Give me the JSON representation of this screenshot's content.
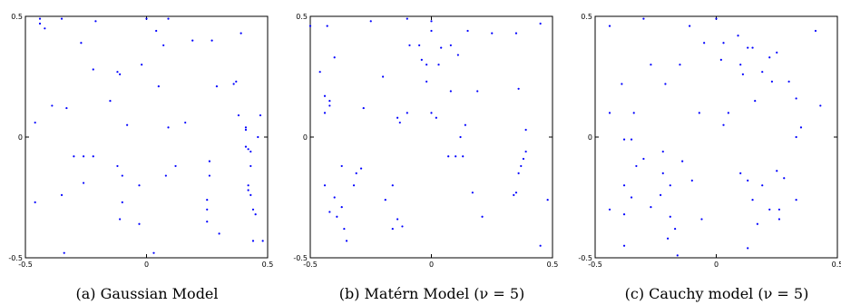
{
  "chart_data": [
    {
      "type": "scatter",
      "caption": "(a) Gaussian Model",
      "xlim": [
        -0.5,
        0.5
      ],
      "ylim": [
        -0.5,
        0.5
      ],
      "xticks": [
        "-0.5",
        "0",
        "0.5"
      ],
      "yticks": [
        "0.5",
        "0",
        "-0.5"
      ],
      "color": "#0000ff",
      "points": [
        [
          -0.44,
          0.49
        ],
        [
          -0.35,
          0.49
        ],
        [
          -0.21,
          0.48
        ],
        [
          0.0,
          0.49
        ],
        [
          0.09,
          0.49
        ],
        [
          0.04,
          0.44
        ],
        [
          -0.44,
          0.47
        ],
        [
          -0.27,
          0.39
        ],
        [
          0.07,
          0.38
        ],
        [
          0.19,
          0.4
        ],
        [
          0.27,
          0.4
        ],
        [
          0.39,
          0.43
        ],
        [
          -0.42,
          0.45
        ],
        [
          -0.22,
          0.28
        ],
        [
          -0.12,
          0.27
        ],
        [
          -0.02,
          0.3
        ],
        [
          -0.11,
          0.26
        ],
        [
          0.05,
          0.21
        ],
        [
          0.29,
          0.21
        ],
        [
          0.36,
          0.22
        ],
        [
          0.37,
          0.23
        ],
        [
          -0.15,
          0.15
        ],
        [
          -0.39,
          0.13
        ],
        [
          -0.33,
          0.12
        ],
        [
          0.38,
          0.09
        ],
        [
          0.47,
          0.09
        ],
        [
          -0.46,
          0.06
        ],
        [
          -0.08,
          0.05
        ],
        [
          0.16,
          0.06
        ],
        [
          0.09,
          0.04
        ],
        [
          0.41,
          0.04
        ],
        [
          0.41,
          0.03
        ],
        [
          0.46,
          0.0
        ],
        [
          0.41,
          -0.04
        ],
        [
          0.42,
          -0.05
        ],
        [
          0.43,
          -0.06
        ],
        [
          -0.3,
          -0.08
        ],
        [
          -0.26,
          -0.08
        ],
        [
          -0.22,
          -0.08
        ],
        [
          -0.12,
          -0.12
        ],
        [
          0.12,
          -0.12
        ],
        [
          0.08,
          -0.16
        ],
        [
          0.26,
          -0.16
        ],
        [
          0.26,
          -0.1
        ],
        [
          -0.1,
          -0.16
        ],
        [
          0.43,
          -0.12
        ],
        [
          -0.26,
          -0.19
        ],
        [
          -0.03,
          -0.2
        ],
        [
          0.42,
          -0.2
        ],
        [
          0.42,
          -0.22
        ],
        [
          -0.35,
          -0.24
        ],
        [
          -0.1,
          -0.27
        ],
        [
          0.25,
          -0.26
        ],
        [
          0.43,
          -0.24
        ],
        [
          -0.46,
          -0.27
        ],
        [
          0.25,
          -0.3
        ],
        [
          0.44,
          -0.3
        ],
        [
          -0.11,
          -0.34
        ],
        [
          -0.03,
          -0.36
        ],
        [
          0.25,
          -0.35
        ],
        [
          0.45,
          -0.32
        ],
        [
          0.3,
          -0.4
        ],
        [
          0.44,
          -0.43
        ],
        [
          0.48,
          -0.43
        ],
        [
          -0.34,
          -0.48
        ],
        [
          0.03,
          -0.48
        ]
      ]
    },
    {
      "type": "scatter",
      "caption": "(b) Matérn Model (ν = 5)",
      "xlim": [
        -0.5,
        0.5
      ],
      "ylim": [
        -0.5,
        0.5
      ],
      "xticks": [
        "-0.5",
        "0",
        "0.5"
      ],
      "yticks": [
        "0.5",
        "0",
        "-0.5"
      ],
      "color": "#0000ff",
      "points": [
        [
          -0.5,
          0.46
        ],
        [
          -0.25,
          0.48
        ],
        [
          -0.1,
          0.49
        ],
        [
          0.0,
          0.48
        ],
        [
          -0.43,
          0.46
        ],
        [
          0.0,
          0.44
        ],
        [
          0.25,
          0.43
        ],
        [
          0.35,
          0.43
        ],
        [
          0.45,
          0.47
        ],
        [
          0.15,
          0.44
        ],
        [
          -0.09,
          0.38
        ],
        [
          -0.05,
          0.38
        ],
        [
          0.04,
          0.37
        ],
        [
          0.08,
          0.38
        ],
        [
          0.11,
          0.34
        ],
        [
          -0.04,
          0.32
        ],
        [
          -0.02,
          0.3
        ],
        [
          -0.4,
          0.33
        ],
        [
          -0.46,
          0.27
        ],
        [
          -0.2,
          0.25
        ],
        [
          0.03,
          0.3
        ],
        [
          -0.02,
          0.23
        ],
        [
          -0.28,
          0.12
        ],
        [
          0.08,
          0.19
        ],
        [
          0.19,
          0.19
        ],
        [
          0.36,
          0.2
        ],
        [
          -0.44,
          0.17
        ],
        [
          -0.42,
          0.15
        ],
        [
          -0.42,
          0.13
        ],
        [
          -0.44,
          0.1
        ],
        [
          -0.1,
          0.1
        ],
        [
          -0.14,
          0.08
        ],
        [
          -0.13,
          0.06
        ],
        [
          0.0,
          0.1
        ],
        [
          0.02,
          0.08
        ],
        [
          0.14,
          0.05
        ],
        [
          0.12,
          0.0
        ],
        [
          0.39,
          0.03
        ],
        [
          0.39,
          -0.06
        ],
        [
          0.07,
          -0.08
        ],
        [
          0.1,
          -0.08
        ],
        [
          0.13,
          -0.08
        ],
        [
          0.38,
          -0.09
        ],
        [
          0.37,
          -0.12
        ],
        [
          0.36,
          -0.15
        ],
        [
          -0.37,
          -0.12
        ],
        [
          -0.31,
          -0.15
        ],
        [
          -0.29,
          -0.13
        ],
        [
          -0.44,
          -0.2
        ],
        [
          -0.4,
          -0.25
        ],
        [
          -0.32,
          -0.2
        ],
        [
          -0.16,
          -0.2
        ],
        [
          -0.19,
          -0.26
        ],
        [
          0.17,
          -0.23
        ],
        [
          0.34,
          -0.24
        ],
        [
          0.35,
          -0.23
        ],
        [
          0.48,
          -0.26
        ],
        [
          -0.39,
          -0.33
        ],
        [
          -0.42,
          -0.31
        ],
        [
          -0.37,
          -0.29
        ],
        [
          -0.14,
          -0.34
        ],
        [
          -0.12,
          -0.37
        ],
        [
          -0.16,
          -0.38
        ],
        [
          -0.36,
          -0.38
        ],
        [
          -0.35,
          -0.43
        ],
        [
          0.21,
          -0.33
        ],
        [
          0.45,
          -0.45
        ]
      ]
    },
    {
      "type": "scatter",
      "caption": "(c) Cauchy model (ν = 5)",
      "xlim": [
        -0.5,
        0.5
      ],
      "ylim": [
        -0.5,
        0.5
      ],
      "xticks": [
        "-0.5",
        "0",
        "0.5"
      ],
      "yticks": [
        "0.5",
        "0",
        "-0.5"
      ],
      "color": "#0000ff",
      "points": [
        [
          -0.3,
          0.49
        ],
        [
          0.0,
          0.49
        ],
        [
          -0.11,
          0.46
        ],
        [
          -0.44,
          0.46
        ],
        [
          0.09,
          0.42
        ],
        [
          0.13,
          0.37
        ],
        [
          0.15,
          0.37
        ],
        [
          0.22,
          0.33
        ],
        [
          0.25,
          0.35
        ],
        [
          0.41,
          0.44
        ],
        [
          -0.05,
          0.39
        ],
        [
          0.03,
          0.39
        ],
        [
          0.02,
          0.32
        ],
        [
          -0.15,
          0.3
        ],
        [
          -0.27,
          0.3
        ],
        [
          0.1,
          0.3
        ],
        [
          0.11,
          0.26
        ],
        [
          0.19,
          0.27
        ],
        [
          0.23,
          0.23
        ],
        [
          -0.21,
          0.22
        ],
        [
          -0.39,
          0.22
        ],
        [
          0.3,
          0.23
        ],
        [
          0.16,
          0.15
        ],
        [
          0.33,
          0.16
        ],
        [
          0.43,
          0.13
        ],
        [
          -0.07,
          0.1
        ],
        [
          0.05,
          0.1
        ],
        [
          0.03,
          0.05
        ],
        [
          -0.34,
          0.1
        ],
        [
          -0.44,
          0.1
        ],
        [
          -0.38,
          -0.01
        ],
        [
          -0.35,
          -0.01
        ],
        [
          0.33,
          0.0
        ],
        [
          0.35,
          0.04
        ],
        [
          -0.22,
          -0.06
        ],
        [
          -0.14,
          -0.1
        ],
        [
          -0.3,
          -0.09
        ],
        [
          -0.33,
          -0.12
        ],
        [
          -0.22,
          -0.15
        ],
        [
          -0.38,
          -0.2
        ],
        [
          -0.35,
          -0.25
        ],
        [
          -0.19,
          -0.2
        ],
        [
          -0.23,
          -0.24
        ],
        [
          -0.1,
          -0.18
        ],
        [
          0.1,
          -0.15
        ],
        [
          0.13,
          -0.18
        ],
        [
          0.19,
          -0.2
        ],
        [
          0.25,
          -0.14
        ],
        [
          0.28,
          -0.17
        ],
        [
          0.15,
          -0.26
        ],
        [
          0.22,
          -0.3
        ],
        [
          0.26,
          -0.3
        ],
        [
          0.26,
          -0.34
        ],
        [
          0.33,
          -0.26
        ],
        [
          -0.27,
          -0.29
        ],
        [
          -0.19,
          -0.33
        ],
        [
          -0.44,
          -0.3
        ],
        [
          -0.38,
          -0.32
        ],
        [
          -0.17,
          -0.38
        ],
        [
          -0.2,
          -0.42
        ],
        [
          -0.06,
          -0.34
        ],
        [
          0.17,
          -0.36
        ],
        [
          0.13,
          -0.46
        ],
        [
          -0.38,
          -0.45
        ],
        [
          -0.16,
          -0.49
        ]
      ]
    }
  ]
}
